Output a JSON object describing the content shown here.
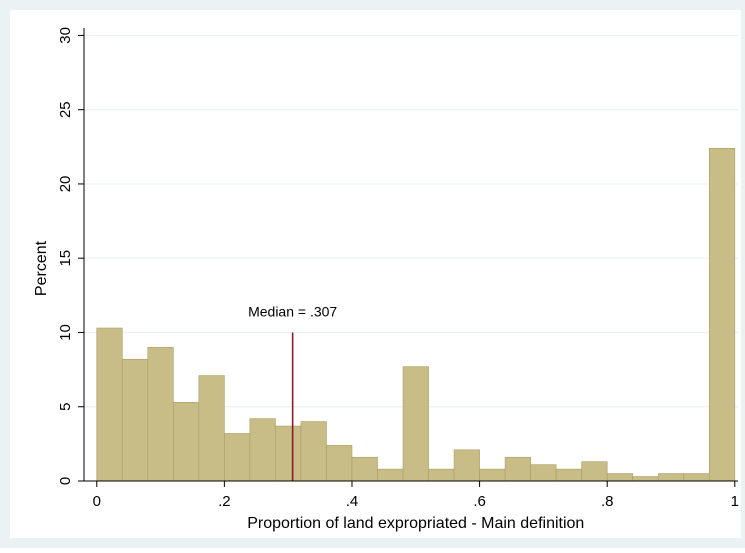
{
  "colors": {
    "outer_background": "#eaf2f3",
    "plot_background": "#ffffff",
    "bar_fill": "#c8bd87",
    "bar_stroke": "#a99d62",
    "median_line": "#8b1a2b",
    "grid": "#eaf2f3",
    "axis": "#000000"
  },
  "chart_data": {
    "type": "bar",
    "subtype": "histogram",
    "title": "",
    "xlabel": "Proportion of land expropriated - Main definition",
    "ylabel": "Percent",
    "xlim": [
      -0.02,
      1.005
    ],
    "ylim": [
      0,
      30.5
    ],
    "x_ticks": [
      0,
      0.2,
      0.4,
      0.6,
      0.8,
      1
    ],
    "x_tick_labels": [
      "0",
      ".2",
      ".4",
      ".6",
      ".8",
      "1"
    ],
    "y_ticks": [
      0,
      5,
      10,
      15,
      20,
      25,
      30
    ],
    "y_tick_labels": [
      "0",
      "5",
      "10",
      "15",
      "20",
      "25",
      "30"
    ],
    "grid": "horizontal",
    "bin_width": 0.04,
    "bins": [
      {
        "x0": 0.0,
        "x1": 0.04,
        "value": 10.3
      },
      {
        "x0": 0.04,
        "x1": 0.08,
        "value": 8.2
      },
      {
        "x0": 0.08,
        "x1": 0.12,
        "value": 9.0
      },
      {
        "x0": 0.12,
        "x1": 0.16,
        "value": 5.3
      },
      {
        "x0": 0.16,
        "x1": 0.2,
        "value": 7.1
      },
      {
        "x0": 0.2,
        "x1": 0.24,
        "value": 3.2
      },
      {
        "x0": 0.24,
        "x1": 0.28,
        "value": 4.2
      },
      {
        "x0": 0.28,
        "x1": 0.32,
        "value": 3.7
      },
      {
        "x0": 0.32,
        "x1": 0.36,
        "value": 4.0
      },
      {
        "x0": 0.36,
        "x1": 0.4,
        "value": 2.4
      },
      {
        "x0": 0.4,
        "x1": 0.44,
        "value": 1.6
      },
      {
        "x0": 0.44,
        "x1": 0.48,
        "value": 0.8
      },
      {
        "x0": 0.48,
        "x1": 0.52,
        "value": 7.7
      },
      {
        "x0": 0.52,
        "x1": 0.56,
        "value": 0.8
      },
      {
        "x0": 0.56,
        "x1": 0.6,
        "value": 2.1
      },
      {
        "x0": 0.6,
        "x1": 0.64,
        "value": 0.8
      },
      {
        "x0": 0.64,
        "x1": 0.68,
        "value": 1.6
      },
      {
        "x0": 0.68,
        "x1": 0.72,
        "value": 1.1
      },
      {
        "x0": 0.72,
        "x1": 0.76,
        "value": 0.8
      },
      {
        "x0": 0.76,
        "x1": 0.8,
        "value": 1.3
      },
      {
        "x0": 0.8,
        "x1": 0.84,
        "value": 0.5
      },
      {
        "x0": 0.84,
        "x1": 0.88,
        "value": 0.3
      },
      {
        "x0": 0.88,
        "x1": 0.92,
        "value": 0.5
      },
      {
        "x0": 0.92,
        "x1": 0.96,
        "value": 0.5
      },
      {
        "x0": 0.96,
        "x1": 1.0,
        "value": 22.4
      }
    ],
    "annotations": [
      {
        "type": "vline",
        "x": 0.307,
        "y_from": 0,
        "y_to": 10,
        "label": "Median = .307"
      }
    ]
  }
}
